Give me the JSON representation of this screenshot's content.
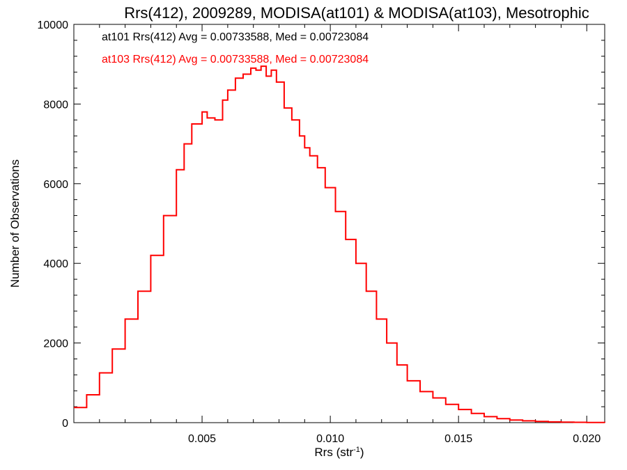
{
  "chart_data": {
    "type": "line",
    "title": "Rrs(412), 2009289, MODISA(at101) & MODISA(at103), Mesotrophic",
    "xlabel": "Rrs (str",
    "xlabel_sup": "-1",
    "xlabel_end": ")",
    "ylabel": "Number of Observations",
    "xlim": [
      0.0,
      0.0207
    ],
    "ylim": [
      0,
      10000
    ],
    "grid": false,
    "x_ticks": [
      {
        "value": 0.005,
        "label": "0.005"
      },
      {
        "value": 0.01,
        "label": "0.010"
      },
      {
        "value": 0.015,
        "label": "0.015"
      },
      {
        "value": 0.02,
        "label": "0.020"
      }
    ],
    "y_ticks": [
      {
        "value": 0,
        "label": "0"
      },
      {
        "value": 2000,
        "label": "2000"
      },
      {
        "value": 4000,
        "label": "4000"
      },
      {
        "value": 6000,
        "label": "6000"
      },
      {
        "value": 8000,
        "label": "8000"
      },
      {
        "value": 10000,
        "label": "10000"
      }
    ],
    "annotations": [
      {
        "text": "at101 Rrs(412) Avg = 0.00733588, Med = 0.00723084",
        "color": "#000000"
      },
      {
        "text": "at103 Rrs(412) Avg = 0.00733588, Med = 0.00723084",
        "color": "#ff0000"
      }
    ],
    "series": [
      {
        "color": "#ff0000",
        "x": [
          0.0,
          0.0005,
          0.001,
          0.0015,
          0.002,
          0.0025,
          0.003,
          0.0035,
          0.004,
          0.0043,
          0.0046,
          0.005,
          0.0052,
          0.0055,
          0.0058,
          0.006,
          0.0063,
          0.0066,
          0.0069,
          0.0071,
          0.0073,
          0.0075,
          0.0077,
          0.0079,
          0.0082,
          0.0085,
          0.0088,
          0.009,
          0.0092,
          0.0095,
          0.0098,
          0.0102,
          0.0106,
          0.011,
          0.0114,
          0.0118,
          0.0122,
          0.0126,
          0.013,
          0.0135,
          0.014,
          0.0145,
          0.015,
          0.0155,
          0.016,
          0.0165,
          0.017,
          0.0175,
          0.018,
          0.0185,
          0.019,
          0.0195,
          0.02,
          0.0207
        ],
        "values": [
          380,
          700,
          1250,
          1850,
          2600,
          3300,
          4200,
          5200,
          6350,
          7000,
          7500,
          7800,
          7650,
          7600,
          8100,
          8350,
          8650,
          8750,
          8900,
          8850,
          8950,
          8700,
          8850,
          8550,
          7900,
          7600,
          7200,
          6900,
          6700,
          6400,
          5900,
          5300,
          4600,
          4000,
          3300,
          2600,
          2000,
          1450,
          1050,
          780,
          620,
          460,
          330,
          230,
          150,
          100,
          65,
          45,
          30,
          20,
          12,
          8,
          5,
          0
        ]
      }
    ]
  }
}
